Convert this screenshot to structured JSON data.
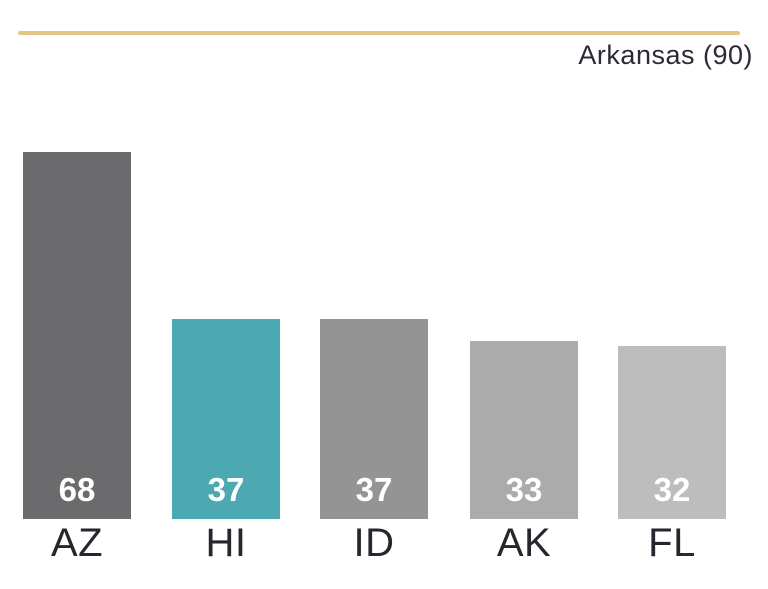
{
  "chart_data": {
    "type": "bar",
    "title": "",
    "categories": [
      "AZ",
      "HI",
      "ID",
      "AK",
      "FL"
    ],
    "values": [
      68,
      37,
      37,
      33,
      32
    ],
    "bar_colors": [
      "#6b6a6c",
      "#4ca9b2",
      "#959495",
      "#acabac",
      "#bebdbe"
    ],
    "highlight_category": "HI",
    "highlight_color": "#4ca9b2",
    "value_labels": [
      "68",
      "37",
      "37",
      "33",
      "32"
    ],
    "value_label_color": "#ffffff",
    "reference_line": {
      "label": "Arkansas (90)",
      "value": 90,
      "color": "#e5c488"
    },
    "xlabel": "",
    "ylabel": "",
    "axis_visible": false,
    "grid": false,
    "legend": false,
    "colors": {
      "category_label_text": "#26262e",
      "reference_label_text": "#2b2b36",
      "background": "#ffffff"
    }
  }
}
